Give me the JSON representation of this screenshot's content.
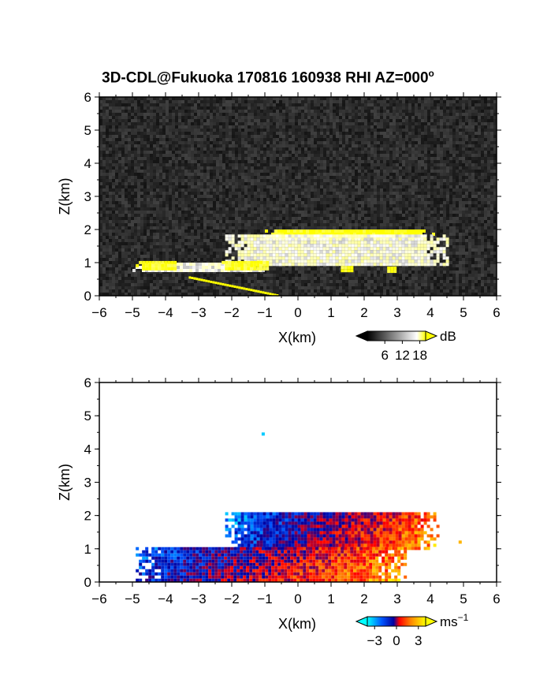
{
  "title": "3D-CDL@Fukuoka 170816 160938 RHI AZ=000",
  "title_superscript": "o",
  "chart_data": [
    {
      "type": "heatmap",
      "panel": "top",
      "quantity": "backscatter intensity",
      "xlabel": "X(km)",
      "ylabel": "Z(km)",
      "xlim": [
        -6,
        6
      ],
      "ylim": [
        0,
        6
      ],
      "xticks": [
        "-6",
        "-5",
        "-4",
        "-3",
        "-2",
        "-1",
        "0",
        "1",
        "2",
        "3",
        "4",
        "5",
        "6"
      ],
      "yticks": [
        "0",
        "1",
        "2",
        "3",
        "4",
        "5",
        "6"
      ],
      "background": "#262626",
      "colorbar": {
        "unit": "dB",
        "ticks": [
          "6",
          "12",
          "18"
        ],
        "tick_values": [
          6,
          12,
          18
        ],
        "range": [
          0,
          20
        ],
        "colors": [
          "#000000",
          "#ffffff",
          "#ffff00"
        ]
      },
      "regions": [
        {
          "kind": "cloud-base band",
          "x_range": [
            -1,
            4.1
          ],
          "z_range": [
            1.75,
            2.0
          ],
          "value_dB": 20
        },
        {
          "kind": "layer",
          "x_range": [
            -2.2,
            4.5
          ],
          "z_range": [
            0.95,
            1.85
          ],
          "value_dB": 11
        },
        {
          "kind": "low layer",
          "x_range": [
            -5,
            -1
          ],
          "z_range": [
            0.8,
            1.0
          ],
          "value_dB": 10
        },
        {
          "kind": "strong patch",
          "x_range": [
            -4.9,
            -3.7
          ],
          "z_range": [
            0.8,
            1.05
          ],
          "value_dB": 19
        },
        {
          "kind": "strong patch",
          "x_range": [
            -2.4,
            -0.9
          ],
          "z_range": [
            0.85,
            1.05
          ],
          "value_dB": 19
        },
        {
          "kind": "strong patch",
          "x_range": [
            1.2,
            1.6
          ],
          "z_range": [
            0.8,
            0.9
          ],
          "value_dB": 19
        },
        {
          "kind": "strong patch",
          "x_range": [
            2.6,
            3.0
          ],
          "z_range": [
            0.78,
            0.88
          ],
          "value_dB": 19
        },
        {
          "kind": "lower elevation line",
          "x_range": [
            -3.3,
            -0.6
          ],
          "z_range": [
            0.0,
            0.55
          ],
          "value_dB": 20
        }
      ]
    },
    {
      "type": "heatmap",
      "panel": "bottom",
      "quantity": "radial velocity",
      "xlabel": "X(km)",
      "ylabel": "Z(km)",
      "xlim": [
        -6,
        6
      ],
      "ylim": [
        0,
        6
      ],
      "xticks": [
        "-6",
        "-5",
        "-4",
        "-3",
        "-2",
        "-1",
        "0",
        "1",
        "2",
        "3",
        "4",
        "5",
        "6"
      ],
      "yticks": [
        "0",
        "1",
        "2",
        "3",
        "4",
        "5",
        "6"
      ],
      "background": "#ffffff",
      "colorbar": {
        "unit": "ms",
        "unit_superscript": "−1",
        "ticks": [
          "−3",
          "0",
          "3"
        ],
        "tick_values": [
          -3,
          0,
          3
        ],
        "range": [
          -4,
          4
        ],
        "colors": [
          "#00ffff",
          "#0055ff",
          "#0000a0",
          "#ff0000",
          "#ff8800",
          "#ffff00"
        ]
      },
      "regions": [
        {
          "kind": "upper layer",
          "x_range": [
            -2.2,
            4.2
          ],
          "z_range": [
            1.0,
            2.1
          ],
          "velocity_ms": [
            -2.5,
            2.5
          ]
        },
        {
          "kind": "low layer",
          "x_range": [
            -4.9,
            3.2
          ],
          "z_range": [
            0.05,
            1.05
          ],
          "velocity_ms": [
            -2.0,
            2.5
          ]
        },
        {
          "kind": "isolated pixel",
          "x": -1.05,
          "z": 4.45,
          "velocity_ms": -3.5
        },
        {
          "kind": "isolated pixel",
          "x": 4.9,
          "z": 1.2,
          "velocity_ms": 3.0
        }
      ]
    }
  ]
}
